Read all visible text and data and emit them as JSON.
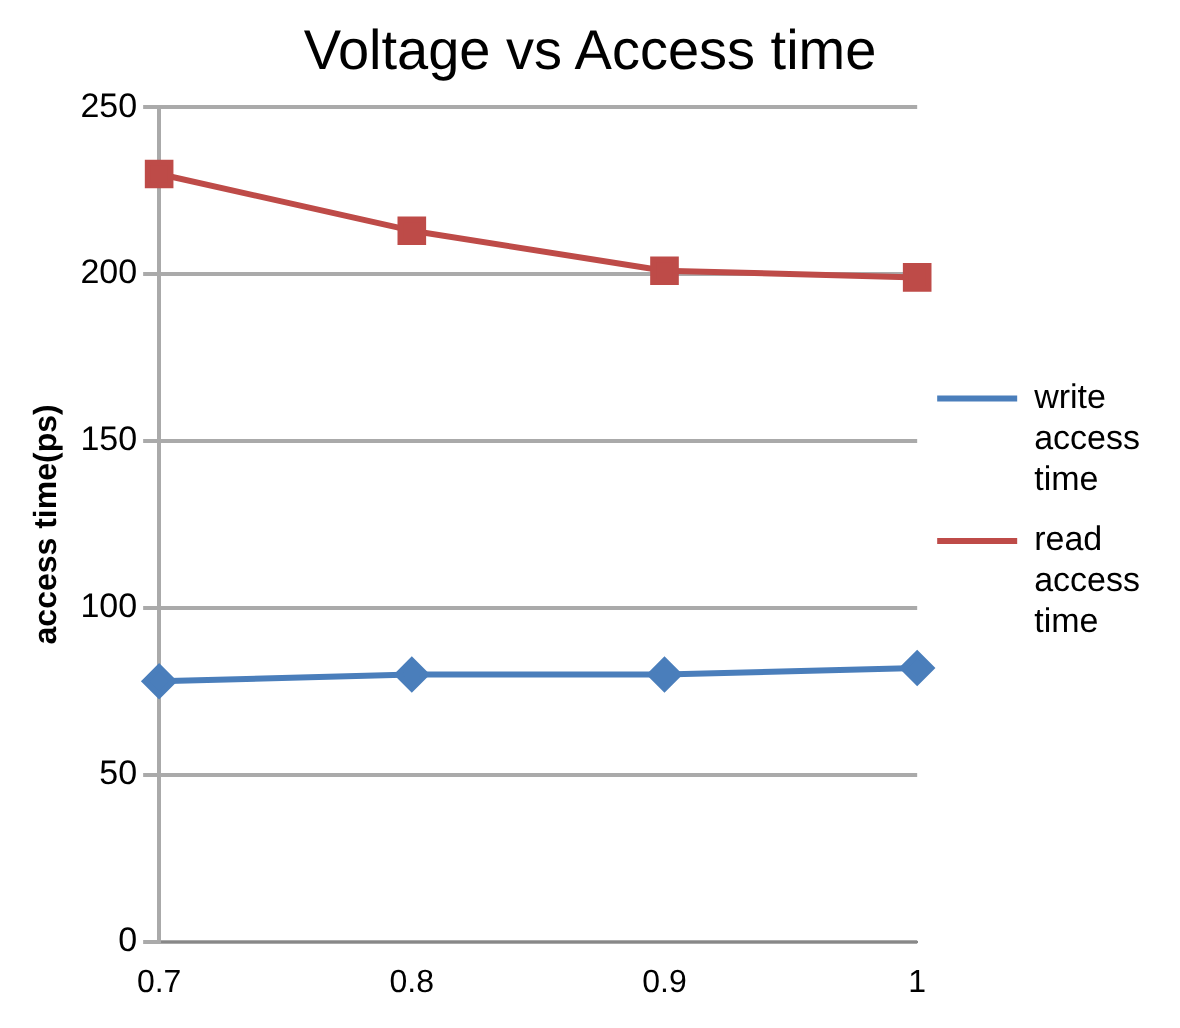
{
  "chart_data": {
    "type": "line",
    "title": "Voltage vs Access time",
    "ylabel": "access time(ps)",
    "categories": [
      "0.7",
      "0.8",
      "0.9",
      "1"
    ],
    "series": [
      {
        "name": "write access time",
        "color": "#4a7ebb",
        "values": [
          78,
          80,
          80,
          82
        ],
        "marker": "diamond"
      },
      {
        "name": "read access time",
        "color": "#be4b48",
        "values": [
          230,
          213,
          201,
          199
        ],
        "marker": "square"
      }
    ],
    "ylim": [
      0,
      250
    ],
    "yticks": [
      0,
      50,
      100,
      150,
      200,
      250
    ],
    "grid": "y",
    "legend": "right"
  }
}
